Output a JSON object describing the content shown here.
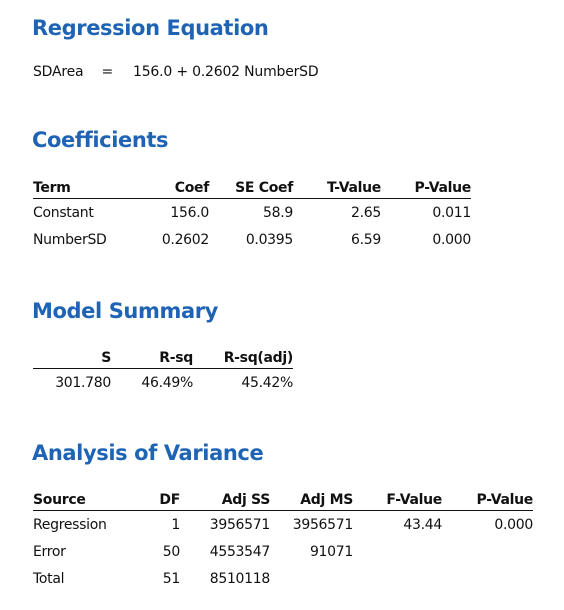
{
  "regression": {
    "heading": "Regression Equation",
    "response": "SDArea",
    "equals": "=",
    "formula": "156.0 + 0.2602 NumberSD"
  },
  "coefficients": {
    "heading": "Coefficients",
    "headers": [
      "Term",
      "Coef",
      "SE Coef",
      "T-Value",
      "P-Value"
    ],
    "rows": [
      [
        "Constant",
        "156.0",
        "58.9",
        "2.65",
        "0.011"
      ],
      [
        "NumberSD",
        "0.2602",
        "0.0395",
        "6.59",
        "0.000"
      ]
    ]
  },
  "model_summary": {
    "heading": "Model Summary",
    "headers": [
      "S",
      "R-sq",
      "R-sq(adj)"
    ],
    "rows": [
      [
        "301.780",
        "46.49%",
        "45.42%"
      ]
    ]
  },
  "anova": {
    "heading": "Analysis of Variance",
    "headers": [
      "Source",
      "DF",
      "Adj SS",
      "Adj MS",
      "F-Value",
      "P-Value"
    ],
    "rows": [
      [
        "Regression",
        "1",
        "3956571",
        "3956571",
        "43.44",
        "0.000"
      ],
      [
        "Error",
        "50",
        "4553547",
        "91071",
        "",
        ""
      ],
      [
        "Total",
        "51",
        "8510118",
        "",
        "",
        ""
      ]
    ]
  },
  "colors": {
    "heading": "#1f64b4",
    "text": "#111111",
    "rule": "#111111"
  }
}
